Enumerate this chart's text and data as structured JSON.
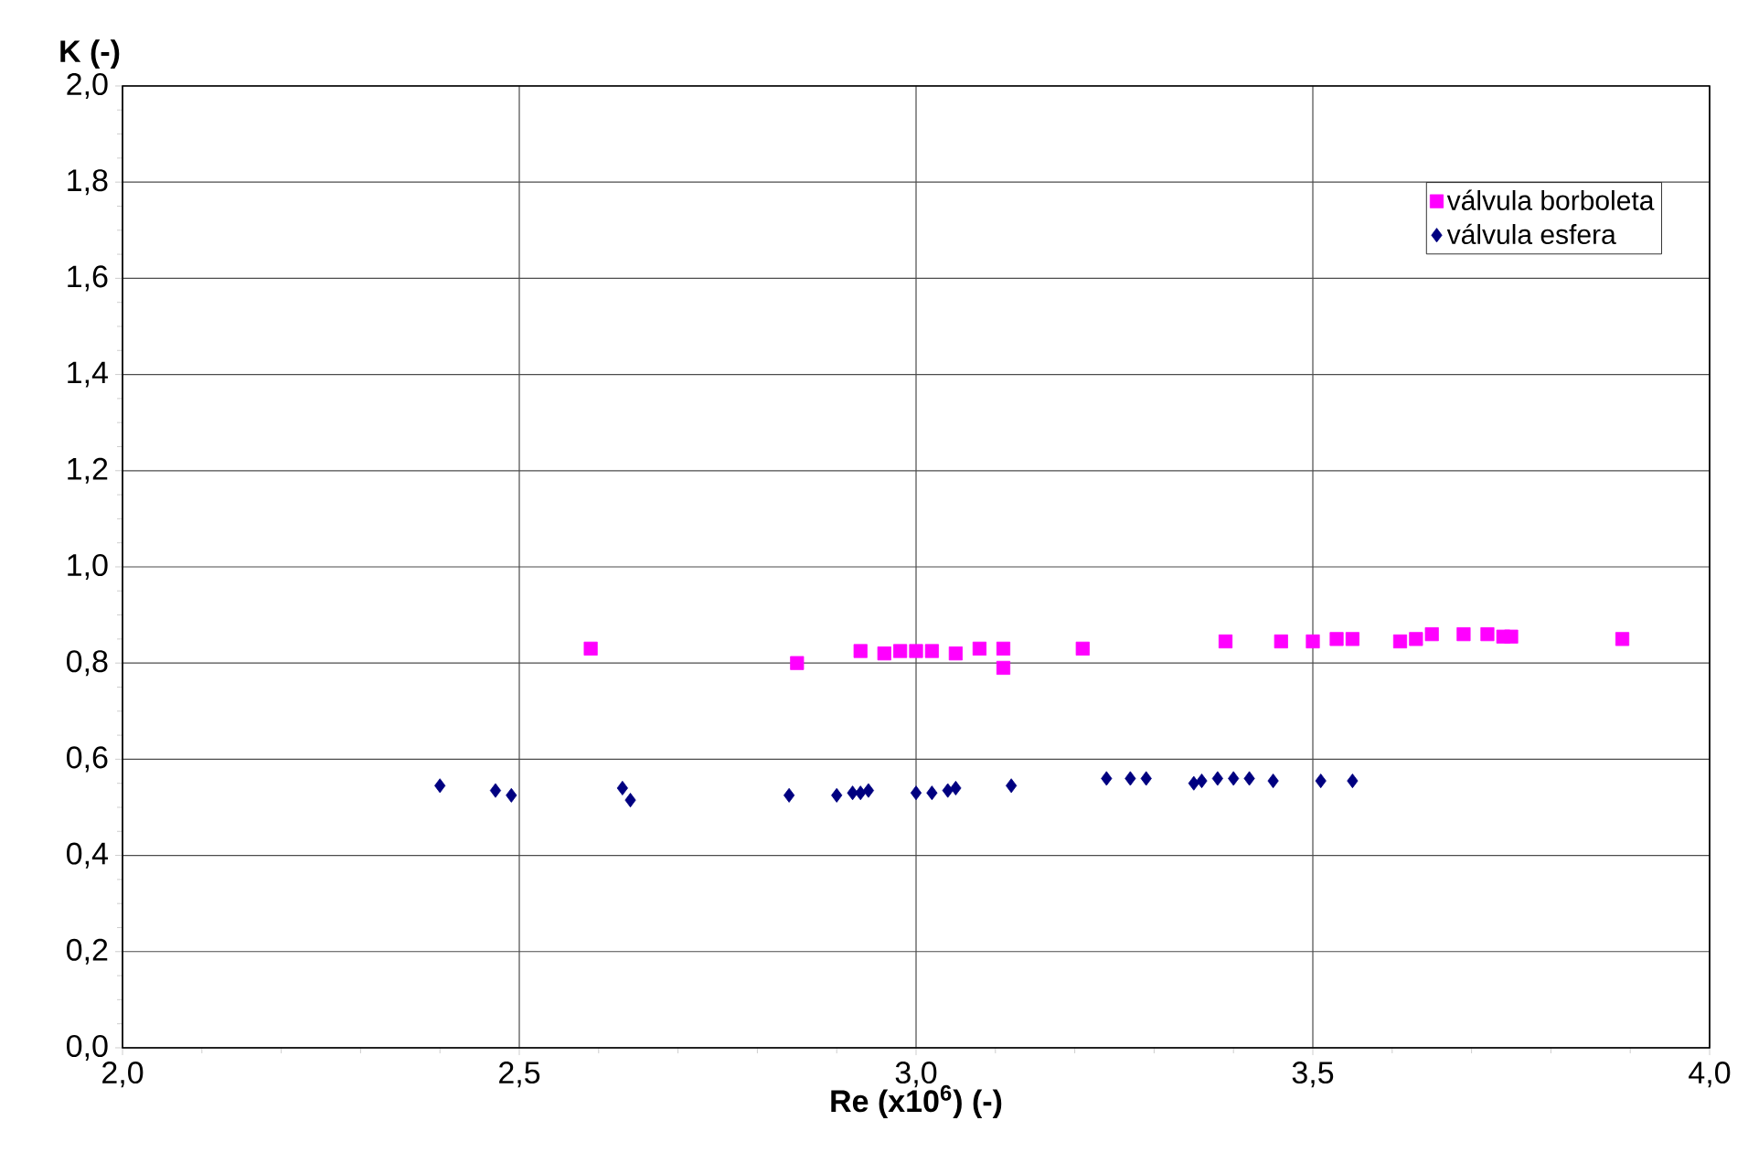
{
  "chart_data": {
    "type": "scatter",
    "xlabel": "Re (x10$^{6}$) (-)",
    "ylabel": "K (-)",
    "xlim": [
      2.0,
      4.0
    ],
    "ylim": [
      0.0,
      2.0
    ],
    "xticks": [
      {
        "value": 2.0,
        "label": "2,0"
      },
      {
        "value": 2.5,
        "label": "2,5"
      },
      {
        "value": 3.0,
        "label": "3,0"
      },
      {
        "value": 3.5,
        "label": "3,5"
      },
      {
        "value": 4.0,
        "label": "4,0"
      }
    ],
    "yticks": [
      {
        "value": 0.0,
        "label": "0,0"
      },
      {
        "value": 0.2,
        "label": "0,2"
      },
      {
        "value": 0.4,
        "label": "0,4"
      },
      {
        "value": 0.6,
        "label": "0,6"
      },
      {
        "value": 0.8,
        "label": "0,8"
      },
      {
        "value": 1.0,
        "label": "1,0"
      },
      {
        "value": 1.2,
        "label": "1,2"
      },
      {
        "value": 1.4,
        "label": "1,4"
      },
      {
        "value": 1.6,
        "label": "1,6"
      },
      {
        "value": 1.8,
        "label": "1,8"
      },
      {
        "value": 2.0,
        "label": "2,0"
      }
    ],
    "grid": true,
    "legend": "top right",
    "series": [
      {
        "name": "válvula borboleta",
        "color": "#ff00ff",
        "marker": "square",
        "x": [
          2.59,
          2.85,
          2.93,
          2.96,
          2.98,
          3.0,
          3.02,
          3.05,
          3.08,
          3.11,
          3.11,
          3.21,
          3.39,
          3.46,
          3.5,
          3.53,
          3.55,
          3.61,
          3.63,
          3.65,
          3.69,
          3.72,
          3.74,
          3.75,
          3.89
        ],
        "values": [
          0.83,
          0.8,
          0.825,
          0.82,
          0.825,
          0.825,
          0.825,
          0.82,
          0.83,
          0.83,
          0.79,
          0.83,
          0.845,
          0.845,
          0.845,
          0.85,
          0.85,
          0.845,
          0.85,
          0.86,
          0.86,
          0.86,
          0.855,
          0.855,
          0.85
        ]
      },
      {
        "name": "válvula esfera",
        "color": "#000080",
        "marker": "diamond",
        "x": [
          2.4,
          2.47,
          2.49,
          2.63,
          2.64,
          2.84,
          2.9,
          2.92,
          2.93,
          2.94,
          3.0,
          3.02,
          3.04,
          3.05,
          3.12,
          3.24,
          3.27,
          3.29,
          3.35,
          3.36,
          3.38,
          3.4,
          3.42,
          3.45,
          3.51,
          3.55
        ],
        "values": [
          0.545,
          0.535,
          0.525,
          0.54,
          0.515,
          0.525,
          0.525,
          0.53,
          0.53,
          0.535,
          0.53,
          0.53,
          0.535,
          0.54,
          0.545,
          0.56,
          0.56,
          0.56,
          0.55,
          0.555,
          0.56,
          0.56,
          0.56,
          0.555,
          0.555,
          0.555
        ]
      }
    ]
  }
}
